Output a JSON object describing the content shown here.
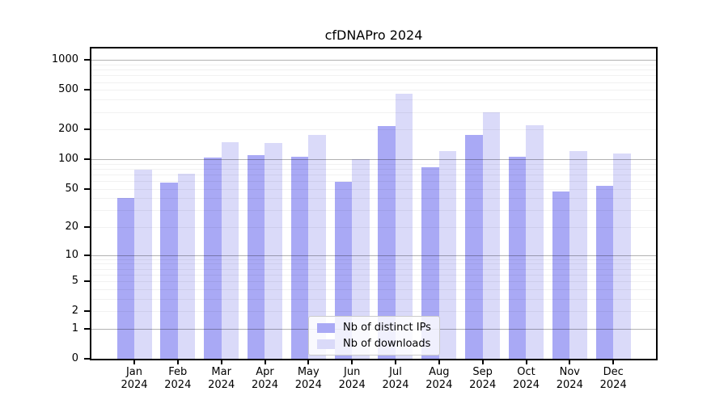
{
  "chart_data": {
    "type": "bar",
    "title": "cfDNAPro 2024",
    "categories": [
      "Jan",
      "Feb",
      "Mar",
      "Apr",
      "May",
      "Jun",
      "Jul",
      "Aug",
      "Sep",
      "Oct",
      "Nov",
      "Dec"
    ],
    "year_label": "2024",
    "series": [
      {
        "name": "Nb of distinct IPs",
        "color": "#a9a9f5",
        "values": [
          40,
          58,
          105,
          110,
          107,
          59,
          216,
          83,
          175,
          107,
          47,
          54
        ]
      },
      {
        "name": "Nb of downloads",
        "color": "#dadaf9",
        "values": [
          78,
          72,
          150,
          145,
          177,
          101,
          455,
          122,
          299,
          221,
          121,
          114
        ]
      }
    ],
    "xlabel": "",
    "ylabel": "",
    "yscale": "log1p",
    "ylim": [
      0,
      1310
    ],
    "yticks": [
      0,
      1,
      2,
      5,
      10,
      20,
      50,
      100,
      200,
      500,
      1000
    ],
    "grid_major": [
      1,
      10,
      100,
      1000
    ],
    "grid_minor": [
      2,
      3,
      4,
      5,
      6,
      7,
      8,
      9,
      20,
      30,
      40,
      50,
      60,
      70,
      80,
      90,
      200,
      300,
      400,
      500,
      600,
      700,
      800,
      900
    ],
    "grid": "on",
    "legend_position": "lower center"
  }
}
